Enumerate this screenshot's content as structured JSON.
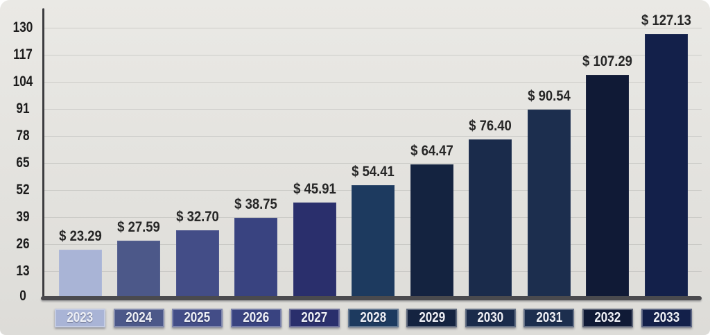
{
  "chart_data": {
    "type": "bar",
    "title": "",
    "xlabel": "",
    "ylabel": "",
    "categories": [
      "2023",
      "2024",
      "2025",
      "2026",
      "2027",
      "2028",
      "2029",
      "2030",
      "2031",
      "2032",
      "2033"
    ],
    "values": [
      23.29,
      27.59,
      32.7,
      38.75,
      45.91,
      54.41,
      64.47,
      76.4,
      90.54,
      107.29,
      127.13
    ],
    "value_labels": [
      "$ 23.29",
      "$ 27.59",
      "$ 32.70",
      "$ 38.75",
      "$ 45.91",
      "$ 54.41",
      "$ 64.47",
      "$ 76.40",
      "$ 90.54",
      "$ 107.29",
      "$ 127.13"
    ],
    "bar_colors": [
      "#a9b4d6",
      "#4c5889",
      "#434d87",
      "#394380",
      "#2a2f6c",
      "#1d3a5f",
      "#142340",
      "#1a2b4b",
      "#1c2e4e",
      "#101a36",
      "#13204a"
    ],
    "y_ticks": [
      0,
      13,
      26,
      39,
      52,
      65,
      78,
      91,
      104,
      117,
      130
    ],
    "ylim": [
      0,
      130
    ],
    "grid": "horizontal",
    "legend": "none",
    "currency_prefix": "$",
    "background_color": "#e3e2de",
    "axis_color": "#4a4a4e",
    "grid_color": "#c6c6c2",
    "value_label_color": "#262626",
    "tick_label_color": "#1b1b1b",
    "category_text_color": "#eef0f6"
  }
}
